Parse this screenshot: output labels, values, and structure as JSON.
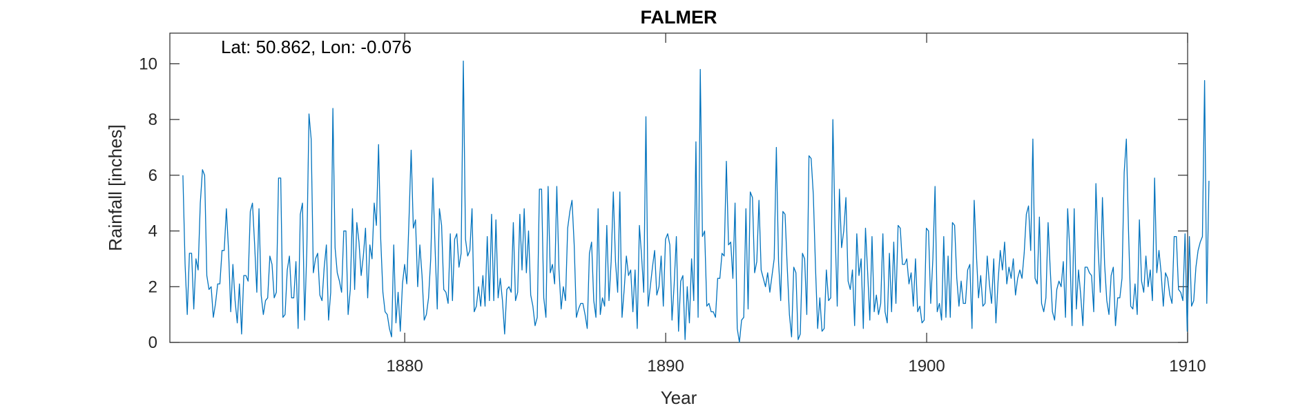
{
  "chart_data": {
    "type": "line",
    "title": "FALMER",
    "xlabel": "Year",
    "ylabel": "Rainfall [inches]",
    "annotation": "Lat: 50.862, Lon: -0.076",
    "xlim": [
      1871,
      1910
    ],
    "ylim": [
      0,
      11.1
    ],
    "xticks": [
      1880,
      1890,
      1900,
      1910
    ],
    "yticks": [
      0,
      2,
      4,
      6,
      8,
      10
    ],
    "grid": false,
    "line_color": "#0072BD",
    "series": [
      {
        "x_start": 1871.5,
        "x_step": 0.0833,
        "values": [
          6.0,
          2.8,
          1.0,
          3.2,
          3.2,
          1.2,
          3.0,
          2.6,
          5.0,
          6.2,
          6.0,
          2.4,
          1.9,
          2.0,
          0.9,
          1.4,
          2.1,
          2.1,
          3.3,
          3.3,
          4.8,
          3.3,
          1.1,
          2.8,
          1.5,
          0.7,
          2.1,
          0.3,
          2.4,
          2.4,
          2.2,
          4.7,
          5.0,
          3.5,
          1.8,
          4.8,
          1.7,
          1.0,
          1.5,
          1.6,
          3.1,
          2.8,
          1.6,
          1.8,
          5.9,
          5.9,
          0.9,
          1.0,
          2.6,
          3.1,
          1.6,
          1.6,
          2.9,
          0.5,
          4.6,
          5.0,
          0.8,
          3.3,
          8.2,
          7.3,
          2.5,
          3.0,
          3.2,
          1.7,
          1.5,
          2.7,
          3.5,
          0.8,
          1.8,
          8.4,
          3.4,
          2.5,
          2.2,
          1.8,
          4.0,
          4.0,
          1.0,
          1.9,
          4.8,
          1.9,
          4.3,
          3.6,
          2.4,
          3.1,
          4.1,
          1.6,
          3.5,
          3.0,
          5.0,
          4.2,
          7.1,
          3.7,
          1.8,
          1.1,
          1.0,
          0.5,
          0.2,
          3.5,
          0.7,
          1.8,
          0.4,
          2.1,
          2.8,
          2.1,
          4.4,
          6.9,
          4.1,
          4.4,
          2.0,
          3.5,
          2.4,
          0.8,
          1.0,
          1.6,
          3.0,
          5.9,
          3.4,
          1.2,
          4.8,
          4.2,
          1.9,
          1.8,
          1.4,
          3.9,
          1.5,
          3.7,
          3.9,
          2.7,
          3.2,
          10.1,
          3.7,
          3.1,
          3.3,
          4.8,
          1.1,
          1.3,
          2.0,
          1.3,
          2.4,
          1.3,
          3.8,
          1.5,
          4.6,
          1.5,
          4.4,
          1.6,
          2.3,
          1.5,
          0.3,
          1.9,
          2.0,
          1.8,
          4.3,
          1.5,
          1.8,
          4.6,
          2.6,
          4.8,
          2.5,
          4.0,
          1.7,
          1.3,
          0.6,
          0.9,
          5.5,
          5.5,
          1.6,
          0.9,
          5.6,
          2.5,
          2.8,
          2.1,
          5.6,
          2.6,
          1.2,
          2.0,
          1.5,
          4.1,
          4.7,
          5.1,
          3.5,
          0.9,
          1.2,
          1.4,
          1.4,
          1.0,
          0.5,
          3.2,
          3.6,
          1.5,
          0.9,
          4.8,
          1.0,
          1.6,
          1.3,
          4.2,
          1.5,
          2.9,
          5.4,
          2.9,
          1.8,
          5.4,
          0.9,
          1.9,
          3.1,
          2.4,
          2.6,
          1.1,
          2.6,
          0.5,
          4.2,
          3.1,
          1.8,
          8.1,
          1.3,
          2.0,
          2.7,
          3.3,
          1.7,
          2.0,
          3.1,
          1.3,
          3.7,
          3.9,
          3.5,
          0.8,
          2.1,
          3.8,
          0.4,
          2.2,
          2.4,
          0.1,
          2.0,
          0.7,
          3.0,
          1.5,
          7.2,
          0.9,
          9.8,
          3.8,
          4.0,
          1.3,
          1.4,
          1.1,
          1.1,
          0.9,
          2.3,
          2.3,
          3.2,
          3.1,
          6.5,
          3.5,
          3.6,
          2.3,
          5.0,
          0.5,
          0.0,
          0.8,
          0.9,
          4.8,
          1.2,
          5.4,
          5.2,
          2.5,
          2.9,
          5.1,
          2.6,
          2.3,
          2.0,
          2.5,
          1.8,
          2.4,
          3.0,
          7.0,
          2.9,
          1.5,
          4.7,
          4.6,
          2.7,
          1.0,
          0.2,
          2.7,
          2.5,
          0.1,
          0.3,
          3.2,
          3.0,
          1.0,
          6.7,
          6.6,
          5.3,
          2.7,
          0.5,
          1.6,
          0.4,
          0.5,
          2.6,
          1.5,
          1.6,
          8.0,
          4.1,
          1.3,
          5.5,
          3.4,
          4.0,
          5.2,
          2.2,
          1.9,
          2.6,
          0.6,
          3.9,
          2.4,
          3.0,
          0.5,
          4.1,
          2.5,
          0.8,
          3.8,
          1.1,
          1.7,
          1.0,
          1.4,
          3.9,
          1.1,
          0.7,
          3.2,
          1.1,
          3.6,
          1.4,
          4.2,
          4.1,
          2.8,
          2.8,
          3.0,
          2.1,
          2.5,
          1.3,
          3.0,
          1.1,
          1.3,
          0.7,
          0.8,
          4.1,
          4.0,
          1.4,
          3.0,
          5.6,
          1.1,
          1.4,
          0.8,
          3.8,
          0.9,
          3.1,
          0.9,
          4.3,
          4.2,
          2.3,
          1.3,
          2.2,
          1.4,
          1.4,
          2.6,
          2.8,
          0.5,
          5.1,
          3.2,
          1.6,
          2.4,
          1.3,
          1.4,
          3.1,
          2.1,
          1.4,
          3.0,
          0.7,
          2.2,
          3.3,
          2.6,
          3.6,
          2.1,
          2.7,
          2.3,
          3.0,
          1.7,
          2.3,
          2.6,
          2.3,
          3.2,
          4.6,
          4.9,
          3.3,
          7.3,
          2.3,
          2.1,
          4.5,
          1.4,
          1.1,
          1.6,
          4.3,
          2.6,
          1.1,
          0.8,
          1.9,
          2.2,
          2.0,
          2.9,
          0.9,
          4.8,
          3.3,
          0.6,
          4.8,
          1.2,
          2.6,
          1.7,
          0.6,
          2.7,
          2.7,
          2.5,
          2.4,
          1.1,
          5.7,
          3.4,
          1.8,
          5.2,
          2.8,
          1.5,
          1.0,
          2.4,
          2.7,
          0.6,
          1.6,
          1.6,
          2.3,
          6.1,
          7.3,
          4.0,
          1.3,
          1.2,
          2.1,
          1.0,
          4.4,
          2.2,
          1.8,
          3.1,
          2.0,
          2.6,
          1.5,
          5.9,
          2.5,
          3.3,
          2.5,
          1.3,
          2.5,
          2.3,
          1.7,
          1.4,
          3.8,
          3.8,
          1.9,
          1.8,
          1.5,
          3.9,
          0.4,
          3.8,
          1.3,
          1.5,
          2.7,
          3.3,
          3.6,
          3.8,
          9.4,
          1.4,
          5.8
        ]
      }
    ]
  }
}
